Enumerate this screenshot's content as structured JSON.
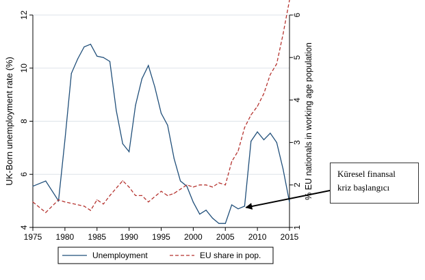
{
  "chart_data": {
    "type": "line",
    "xlabel": "",
    "ylabel_left": "UK-Born unemployment rate (%)",
    "ylabel_right": "% EU nationals in working age population",
    "xlim": [
      1975,
      2015
    ],
    "ylim_left": [
      4,
      12
    ],
    "ylim_right": [
      1,
      6
    ],
    "x_ticks": [
      1975,
      1980,
      1985,
      1990,
      1995,
      2000,
      2005,
      2010,
      2015
    ],
    "y_ticks_left": [
      4,
      6,
      8,
      10,
      12
    ],
    "y_ticks_right": [
      1,
      2,
      3,
      4,
      5,
      6
    ],
    "grid": true,
    "legend_position": "bottom",
    "colors": {
      "unemployment": "#1f4e79",
      "eu_share": "#b5322e",
      "grid": "#dde3e9",
      "axis": "#000000"
    },
    "series": [
      {
        "name": "Unemployment",
        "axis": "left",
        "style": "solid",
        "x": [
          1975,
          1977,
          1979,
          1980,
          1981,
          1982,
          1983,
          1984,
          1985,
          1986,
          1987,
          1988,
          1989,
          1990,
          1991,
          1992,
          1993,
          1994,
          1995,
          1996,
          1997,
          1998,
          1999,
          2000,
          2001,
          2002,
          2003,
          2004,
          2005,
          2006,
          2007,
          2008,
          2009,
          2010,
          2011,
          2012,
          2013,
          2014,
          2015
        ],
        "values": [
          5.55,
          5.75,
          5.0,
          7.3,
          9.8,
          10.35,
          10.8,
          10.9,
          10.45,
          10.4,
          10.25,
          8.4,
          7.15,
          6.85,
          8.6,
          9.6,
          10.1,
          9.3,
          8.3,
          7.85,
          6.6,
          5.75,
          5.55,
          4.95,
          4.5,
          4.65,
          4.35,
          4.15,
          4.15,
          4.85,
          4.7,
          4.8,
          7.25,
          7.6,
          7.3,
          7.55,
          7.2,
          6.2,
          4.95
        ]
      },
      {
        "name": "EU share in pop.",
        "axis": "right",
        "style": "dashed",
        "x": [
          1975,
          1977,
          1979,
          1980,
          1983,
          1984,
          1985,
          1986,
          1987,
          1989,
          1990,
          1991,
          1992,
          1993,
          1995,
          1996,
          1997,
          1999,
          2000,
          2001,
          2002,
          2003,
          2004,
          2005,
          2006,
          2007,
          2008,
          2009,
          2010,
          2011,
          2012,
          2013,
          2014,
          2015
        ],
        "values": [
          1.6,
          1.35,
          1.65,
          1.6,
          1.5,
          1.4,
          1.65,
          1.55,
          1.75,
          2.1,
          1.95,
          1.75,
          1.75,
          1.6,
          1.85,
          1.75,
          1.8,
          2.0,
          1.95,
          2.0,
          2.0,
          1.95,
          2.05,
          2.0,
          2.55,
          2.8,
          3.35,
          3.65,
          3.85,
          4.15,
          4.6,
          4.85,
          5.55,
          6.35
        ]
      }
    ],
    "annotation": {
      "text_line1": "Küresel finansal",
      "text_line2": "kriz başlangıcı",
      "points_to": {
        "x": 2008,
        "y": 4.75,
        "axis": "left"
      }
    }
  }
}
